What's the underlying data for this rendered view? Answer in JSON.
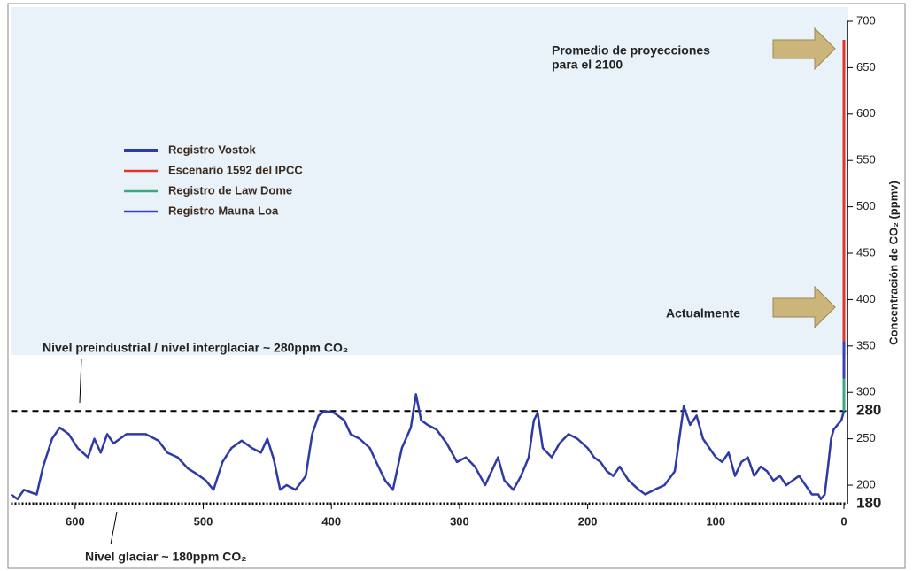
{
  "chart_data": {
    "type": "line",
    "y_label": "Concentración de CO₂ (ppmv)",
    "xlim": [
      650,
      0
    ],
    "xticks": [
      600,
      500,
      400,
      300,
      200,
      100,
      0
    ],
    "ylim": [
      180,
      700
    ],
    "yticks": [
      200,
      250,
      300,
      350,
      400,
      450,
      500,
      550,
      600,
      650,
      700
    ],
    "reference_lines": [
      {
        "value": 280,
        "style": "dashed"
      },
      {
        "value": 180,
        "style": "dotted"
      }
    ],
    "annotations": [
      {
        "lines": [
          "Promedio de proyecciones",
          "para el 2100"
        ]
      },
      {
        "lines": [
          "Actualmente"
        ]
      },
      {
        "lines": [
          "Nivel preindustrial / nivel interglaciar ~ 280ppm CO₂"
        ]
      },
      {
        "lines": [
          "Nivel glaciar ~ 180ppm CO₂"
        ]
      }
    ],
    "series": [
      {
        "name": "Registro Vostok",
        "color": "#2e3aa6",
        "x": [
          650,
          645,
          640,
          630,
          625,
          618,
          612,
          605,
          598,
          590,
          585,
          580,
          575,
          570,
          560,
          545,
          535,
          528,
          520,
          512,
          505,
          498,
          492,
          485,
          478,
          470,
          462,
          455,
          450,
          445,
          440,
          435,
          428,
          420,
          415,
          410,
          405,
          398,
          390,
          385,
          378,
          370,
          365,
          358,
          352,
          345,
          338,
          334,
          330,
          325,
          318,
          310,
          302,
          295,
          288,
          280,
          275,
          270,
          265,
          258,
          252,
          246,
          242,
          239,
          235,
          228,
          222,
          215,
          208,
          200,
          195,
          190,
          185,
          180,
          175,
          168,
          160,
          155,
          148,
          140,
          132,
          128,
          125,
          120,
          115,
          110,
          105,
          100,
          95,
          90,
          85,
          80,
          75,
          70,
          65,
          60,
          55,
          50,
          45,
          40,
          35,
          30,
          25,
          20,
          18,
          15,
          12,
          10,
          8,
          5,
          2,
          0
        ],
        "values": [
          190,
          185,
          195,
          190,
          220,
          250,
          262,
          255,
          240,
          230,
          250,
          235,
          255,
          245,
          255,
          255,
          248,
          235,
          230,
          218,
          212,
          205,
          195,
          225,
          240,
          248,
          240,
          235,
          250,
          228,
          195,
          200,
          195,
          210,
          255,
          275,
          280,
          278,
          270,
          255,
          250,
          240,
          225,
          205,
          195,
          240,
          262,
          298,
          270,
          265,
          260,
          245,
          225,
          230,
          220,
          200,
          215,
          230,
          205,
          195,
          210,
          230,
          270,
          278,
          240,
          230,
          245,
          255,
          250,
          240,
          230,
          225,
          215,
          210,
          220,
          205,
          195,
          190,
          195,
          200,
          215,
          255,
          285,
          265,
          275,
          250,
          240,
          230,
          225,
          235,
          210,
          225,
          230,
          210,
          220,
          215,
          205,
          210,
          200,
          205,
          210,
          200,
          190,
          190,
          185,
          190,
          225,
          250,
          260,
          265,
          270,
          280
        ]
      },
      {
        "name": "Escenario 1592 del IPCC",
        "color": "#e5332a",
        "x": [
          0,
          0
        ],
        "values": [
          355,
          680
        ]
      },
      {
        "name": "Registro de Law Dome",
        "color": "#3aa882",
        "x": [
          0,
          0
        ],
        "values": [
          280,
          330
        ]
      },
      {
        "name": "Registro Mauna Loa",
        "color": "#3b3fb8",
        "x": [
          0,
          0
        ],
        "values": [
          315,
          355
        ]
      }
    ]
  }
}
